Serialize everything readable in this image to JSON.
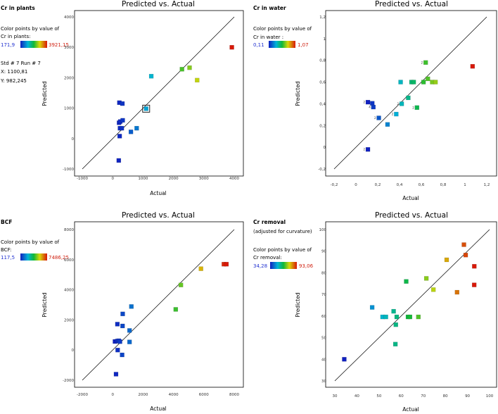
{
  "chart_data": [
    {
      "type": "scatter",
      "panel_label": "Cr in plants",
      "title": "Predicted vs. Actual",
      "xlabel": "Actual",
      "ylabel": "Predicted",
      "xlim": [
        -1000,
        4000
      ],
      "ylim": [
        -1000,
        4000
      ],
      "xticks": [
        "-1000",
        "0",
        "1000",
        "2000",
        "3000",
        "4000"
      ],
      "yticks": [
        "-1000",
        "0",
        "1000",
        "2000",
        "3000",
        "4000"
      ],
      "color_legend": {
        "caption": "Color points by value of",
        "variable": "Cr in plants:",
        "min_label": "171,9",
        "max_label": "3921,15"
      },
      "selection": {
        "line1": "Std # 7 Run # 7",
        "line2": "X: 1100,81",
        "line3": "Y: 982,245"
      },
      "highlight": {
        "x": 1100.81,
        "y": 982.245
      },
      "points": [
        {
          "x": 200,
          "y": -720
        },
        {
          "x": 230,
          "y": 80
        },
        {
          "x": 240,
          "y": 340
        },
        {
          "x": 300,
          "y": 340
        },
        {
          "x": 210,
          "y": 520
        },
        {
          "x": 250,
          "y": 560
        },
        {
          "x": 330,
          "y": 600
        },
        {
          "x": 220,
          "y": 1180
        },
        {
          "x": 320,
          "y": 1150
        },
        {
          "x": 600,
          "y": 220
        },
        {
          "x": 790,
          "y": 340
        },
        {
          "x": 1100.81,
          "y": 982.245
        },
        {
          "x": 1270,
          "y": 2050
        },
        {
          "x": 2280,
          "y": 2280
        },
        {
          "x": 2530,
          "y": 2330
        },
        {
          "x": 2780,
          "y": 1920
        },
        {
          "x": 3921.15,
          "y": 3000
        }
      ]
    },
    {
      "type": "scatter",
      "panel_label": "Cr in water",
      "title": "Predicted vs. Actual",
      "xlabel": "Actual",
      "ylabel": "Predicted",
      "xlim": [
        -0.2,
        1.2
      ],
      "ylim": [
        -0.2,
        1.2
      ],
      "xticks": [
        "-0,2",
        "0",
        "0,2",
        "0,4",
        "0,6",
        "0,8",
        "1",
        "1,2"
      ],
      "yticks": [
        "-0,2",
        "0",
        "0,2",
        "0,4",
        "0,6",
        "0,8",
        "1",
        "1,2"
      ],
      "color_legend": {
        "caption": "Color points by value of",
        "variable": "Cr in water :",
        "min_label": "0,11",
        "max_label": "1,07"
      },
      "points": [
        {
          "x": 0.11,
          "y": -0.02,
          "n": "2"
        },
        {
          "x": 0.11,
          "y": 0.415,
          "n": "2"
        },
        {
          "x": 0.15,
          "y": 0.405
        },
        {
          "x": 0.16,
          "y": 0.37,
          "n": "4"
        },
        {
          "x": 0.21,
          "y": 0.27,
          "n": "2"
        },
        {
          "x": 0.29,
          "y": 0.21
        },
        {
          "x": 0.37,
          "y": 0.305,
          "n": "2"
        },
        {
          "x": 0.42,
          "y": 0.4,
          "n": "2"
        },
        {
          "x": 0.41,
          "y": 0.6
        },
        {
          "x": 0.48,
          "y": 0.455
        },
        {
          "x": 0.51,
          "y": 0.6
        },
        {
          "x": 0.53,
          "y": 0.6
        },
        {
          "x": 0.56,
          "y": 0.365,
          "n": "2"
        },
        {
          "x": 0.62,
          "y": 0.6
        },
        {
          "x": 0.64,
          "y": 0.78,
          "n": "2"
        },
        {
          "x": 0.66,
          "y": 0.63
        },
        {
          "x": 0.7,
          "y": 0.6
        },
        {
          "x": 0.73,
          "y": 0.6
        },
        {
          "x": 1.07,
          "y": 0.745
        }
      ]
    },
    {
      "type": "scatter",
      "panel_label": "BCF",
      "title": "Predicted vs. Actual",
      "xlabel": "Actual",
      "ylabel": "Predicted",
      "xlim": [
        -2000,
        8000
      ],
      "ylim": [
        -2000,
        8000
      ],
      "xticks": [
        "-2000",
        "0",
        "2000",
        "4000",
        "6000",
        "8000"
      ],
      "yticks": [
        "-2000",
        "0",
        "2000",
        "4000",
        "6000",
        "8000"
      ],
      "color_legend": {
        "caption": "Color points by value of",
        "variable": "BCF:",
        "min_label": "117,5",
        "max_label": "7486,25"
      },
      "points": [
        {
          "x": 220,
          "y": -1600
        },
        {
          "x": 330,
          "y": 0
        },
        {
          "x": 620,
          "y": -320
        },
        {
          "x": 150,
          "y": 570
        },
        {
          "x": 300,
          "y": 600
        },
        {
          "x": 400,
          "y": 620
        },
        {
          "x": 480,
          "y": 560
        },
        {
          "x": 310,
          "y": 1720
        },
        {
          "x": 650,
          "y": 1600
        },
        {
          "x": 660,
          "y": 2400
        },
        {
          "x": 1110,
          "y": 540
        },
        {
          "x": 1110,
          "y": 1300
        },
        {
          "x": 1230,
          "y": 2890
        },
        {
          "x": 4150,
          "y": 2700
        },
        {
          "x": 4490,
          "y": 4320
        },
        {
          "x": 5810,
          "y": 5400
        },
        {
          "x": 7320,
          "y": 5700
        },
        {
          "x": 7486.25,
          "y": 5700
        }
      ]
    },
    {
      "type": "scatter",
      "panel_label": "Cr removal",
      "panel_note": "(adjusted for curvature)",
      "title": "Predicted vs. Actual",
      "xlabel": "Actual",
      "ylabel": "Predicted",
      "xlim": [
        30,
        100
      ],
      "ylim": [
        30,
        100
      ],
      "xticks": [
        "30",
        "40",
        "50",
        "60",
        "70",
        "80",
        "90",
        "100"
      ],
      "yticks": [
        "30",
        "40",
        "50",
        "60",
        "70",
        "80",
        "90",
        "100"
      ],
      "color_legend": {
        "caption": "Color points by value of",
        "variable": "Cr removal:",
        "min_label": "34,28",
        "max_label": "93,06"
      },
      "points": [
        {
          "x": 34.28,
          "y": 40
        },
        {
          "x": 46.9,
          "y": 64.0
        },
        {
          "x": 51.6,
          "y": 59.6
        },
        {
          "x": 53.1,
          "y": 59.6
        },
        {
          "x": 56.6,
          "y": 62.2
        },
        {
          "x": 57.4,
          "y": 47.0
        },
        {
          "x": 57.6,
          "y": 56.0
        },
        {
          "x": 58.0,
          "y": 59.6
        },
        {
          "x": 62.3,
          "y": 76.0
        },
        {
          "x": 63.1,
          "y": 59.6
        },
        {
          "x": 64.0,
          "y": 59.6
        },
        {
          "x": 67.8,
          "y": 59.6
        },
        {
          "x": 71.4,
          "y": 77.4
        },
        {
          "x": 74.6,
          "y": 72.2
        },
        {
          "x": 80.6,
          "y": 86.0
        },
        {
          "x": 85.3,
          "y": 71.0
        },
        {
          "x": 88.4,
          "y": 93.0
        },
        {
          "x": 89.2,
          "y": 88.2
        },
        {
          "x": 93.06,
          "y": 74.4
        },
        {
          "x": 93.1,
          "y": 83.0
        }
      ]
    }
  ]
}
